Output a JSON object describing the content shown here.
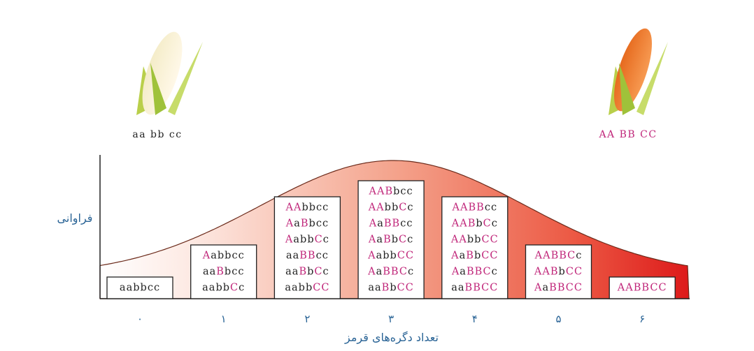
{
  "corn_labels": {
    "left": "aa bb cc",
    "right": "AA BB CC"
  },
  "y_axis_label": "فراوانی",
  "x_axis_label": "تعداد دگره‌های قرمز",
  "columns": [
    {
      "label": "۰",
      "genotypes": [
        "aabbcc"
      ]
    },
    {
      "label": "۱",
      "genotypes": [
        "Aabbcc",
        "aaBbcc",
        "aabbCc"
      ]
    },
    {
      "label": "۲",
      "genotypes": [
        "AAbbcc",
        "AaBbcc",
        "AabbCc",
        "aaBBcc",
        "aaBbCc",
        "aabbCC"
      ]
    },
    {
      "label": "۳",
      "genotypes": [
        "AABbcc",
        "AAbbCc",
        "AaBBcc",
        "AaBbCc",
        "AabbCC",
        "AaBBCc",
        "aaBbCC"
      ]
    },
    {
      "label": "۴",
      "genotypes": [
        "AABBcc",
        "AABbCc",
        "AAbbCC",
        "AaBbCC",
        "AaBBCc",
        "aaBBCC"
      ]
    },
    {
      "label": "۵",
      "genotypes": [
        "AABBCc",
        "AABbCC",
        "AaBBCC"
      ]
    },
    {
      "label": "۶",
      "genotypes": [
        "AABBCC"
      ]
    }
  ]
}
